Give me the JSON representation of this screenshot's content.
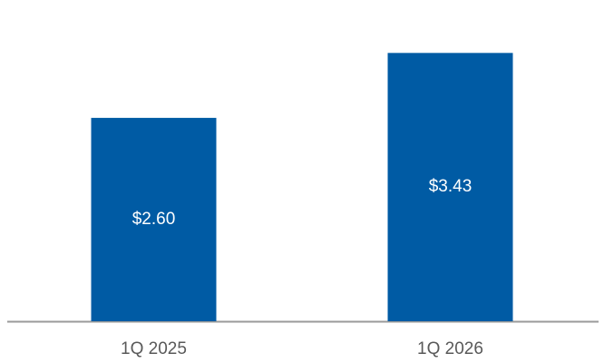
{
  "chart_data": {
    "type": "bar",
    "categories": [
      "1Q 2025",
      "1Q 2026"
    ],
    "values": [
      2.6,
      3.43
    ],
    "value_labels": [
      "$2.60",
      "$3.43"
    ],
    "color": "#005ba4"
  }
}
